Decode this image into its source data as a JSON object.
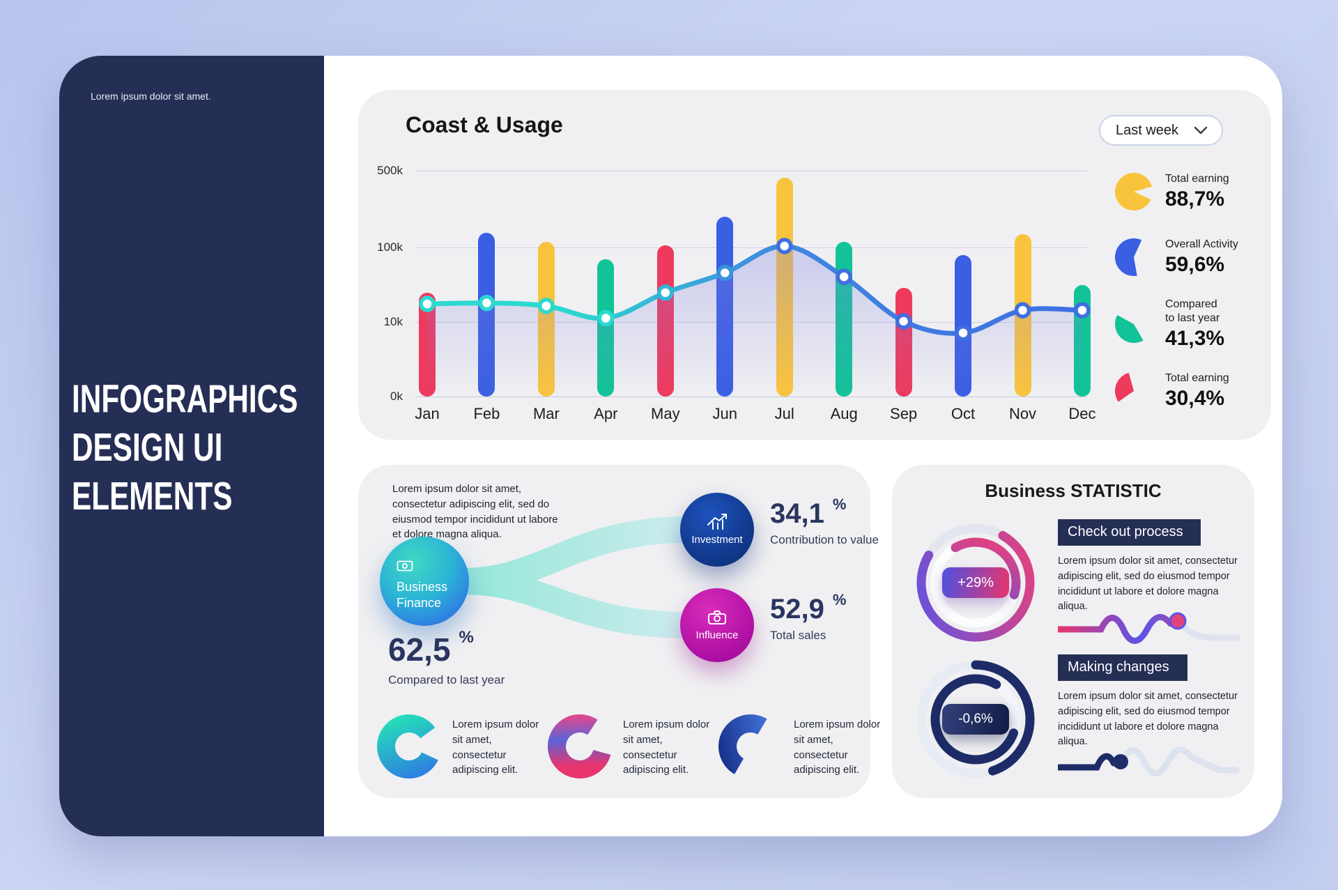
{
  "sidebar": {
    "note": "Lorem ipsum dolor sit amet.",
    "title_lines": [
      "INFOGRAPHICS",
      "DESIGN UI",
      "ELEMENTS"
    ]
  },
  "usage": {
    "title": "Coast & Usage",
    "period": "Last week",
    "legend": [
      {
        "label": "Total earning",
        "value": "88,7%",
        "color": "#f9c43d"
      },
      {
        "label": "Overall Activity",
        "value": "59,6%",
        "color": "#3b5fe2"
      },
      {
        "label": "Compared\nto last year",
        "value": "41,3%",
        "color": "#12c398"
      },
      {
        "label": "Total earning",
        "value": "30,4%",
        "color": "#ee3a5d"
      }
    ]
  },
  "chart_data": {
    "type": "bar+line",
    "title": "Coast & Usage",
    "categories": [
      "Jan",
      "Feb",
      "Mar",
      "Apr",
      "May",
      "Jun",
      "Jul",
      "Aug",
      "Sep",
      "Oct",
      "Nov",
      "Dec"
    ],
    "series": [
      {
        "name": "monthly-bars",
        "units": "k",
        "values": [
          24,
          133,
          110,
          66,
          102,
          187,
          433,
          110,
          28,
          76,
          128,
          30
        ]
      },
      {
        "name": "trend-line",
        "units": "k",
        "values": [
          17,
          17.5,
          16,
          11,
          24,
          44,
          100,
          39,
          10,
          7,
          14,
          14
        ]
      }
    ],
    "bar_colors": [
      "#ee3a5d",
      "#3b5fe2",
      "#f9c43d",
      "#12c398"
    ],
    "line_colors": {
      "start": "#2cd9cf",
      "end": "#3f6fe2"
    },
    "y_ticks": [
      "500k",
      "100k",
      "10k",
      "0k"
    ],
    "y_scale": "non-linear (0k,10k,100k,500k equally spaced)",
    "grid": true,
    "legend_position": "right"
  },
  "finance": {
    "paragraph": "Lorem ipsum dolor sit amet, consectetur adipiscing elit, sed do eiusmod tempor incididunt ut labore et dolore magna aliqua.",
    "bubble_label": "Business Finance",
    "main_stat": {
      "value": "62,5",
      "unit": "%",
      "label": "Compared to last year"
    },
    "nodes": [
      {
        "label": "Investment",
        "value": "34,1",
        "unit": "%",
        "desc": "Contribution to value"
      },
      {
        "label": "Influence",
        "value": "52,9",
        "unit": "%",
        "desc": "Total sales"
      }
    ],
    "notes": [
      "Lorem ipsum dolor sit amet, consectetur adipiscing elit.",
      "Lorem ipsum dolor sit amet, consectetur adipiscing elit.",
      "Lorem ipsum dolor sit amet, consectetur adipiscing elit."
    ]
  },
  "statistic": {
    "title": "Business STATISTIC",
    "sections": [
      {
        "badge": "+29%",
        "heading": "Check out process",
        "paragraph": "Lorem ipsum dolor sit amet, consectetur adipiscing elit, sed do eiusmod tempor incididunt ut labore et dolore magna aliqua."
      },
      {
        "badge": "-0,6%",
        "heading": "Making changes",
        "paragraph": "Lorem ipsum dolor sit amet, consectetur adipiscing elit, sed do eiusmod tempor incididunt ut labore et dolore magna aliqua."
      }
    ]
  }
}
